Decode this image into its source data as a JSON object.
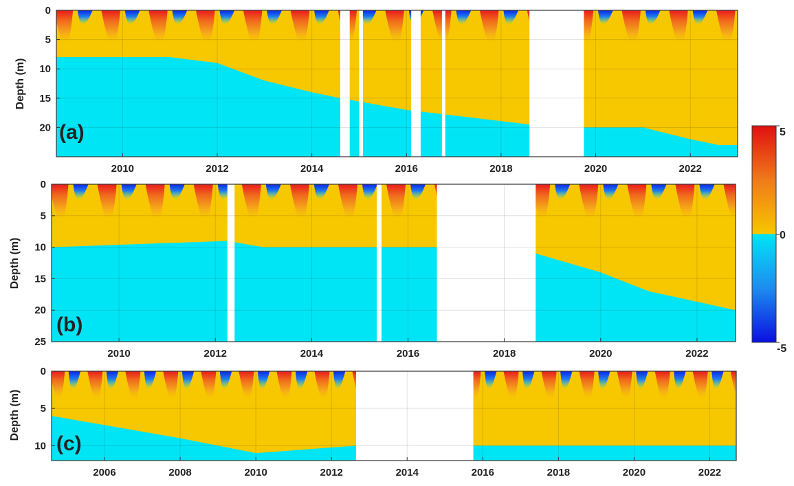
{
  "chart_data": {
    "type": "heatmap",
    "colorbar": {
      "range": [
        -5,
        5
      ],
      "ticks": [
        "5",
        "0",
        "-5"
      ],
      "colormap": "jet",
      "colors": {
        "negative_deep": "#0a1ee6",
        "negative": "#1e90ff",
        "zero_below": "#00e5f5",
        "zero_above": "#f7c700",
        "warm": "#f08a1d",
        "positive_deep": "#e01e1e"
      }
    },
    "panels": [
      {
        "label": "(a)",
        "ylabel": "Depth (m)",
        "yticks": [
          "0",
          "5",
          "10",
          "15",
          "20"
        ],
        "ylim": [
          0,
          25
        ],
        "xlim": [
          2008.6,
          2023.0
        ],
        "xticks": [
          "2010",
          "2012",
          "2014",
          "2016",
          "2018",
          "2020",
          "2022"
        ],
        "data_gaps": [
          [
            2014.6,
            2014.8
          ],
          [
            2015.0,
            2015.08
          ],
          [
            2016.1,
            2016.3
          ],
          [
            2016.75,
            2016.82
          ],
          [
            2018.6,
            2019.75
          ]
        ]
      },
      {
        "label": "(b)",
        "ylabel": "Depth (m)",
        "yticks": [
          "0",
          "5",
          "10",
          "15",
          "20",
          "25"
        ],
        "ylim": [
          0,
          25
        ],
        "xlim": [
          2008.6,
          2022.8
        ],
        "xticks": [
          "2010",
          "2012",
          "2014",
          "2016",
          "2018",
          "2020",
          "2022"
        ],
        "data_gaps": [
          [
            2012.25,
            2012.4
          ],
          [
            2015.35,
            2015.45
          ],
          [
            2016.6,
            2018.65
          ]
        ]
      },
      {
        "label": "(c)",
        "ylabel": "Depth (m)",
        "yticks": [
          "0",
          "5",
          "10"
        ],
        "ylim": [
          0,
          12
        ],
        "xlim": [
          2004.6,
          2022.7
        ],
        "xticks": [
          "2006",
          "2008",
          "2010",
          "2012",
          "2014",
          "2016",
          "2018",
          "2020",
          "2022"
        ],
        "data_gaps": [
          [
            2012.65,
            2015.75
          ]
        ]
      }
    ]
  }
}
